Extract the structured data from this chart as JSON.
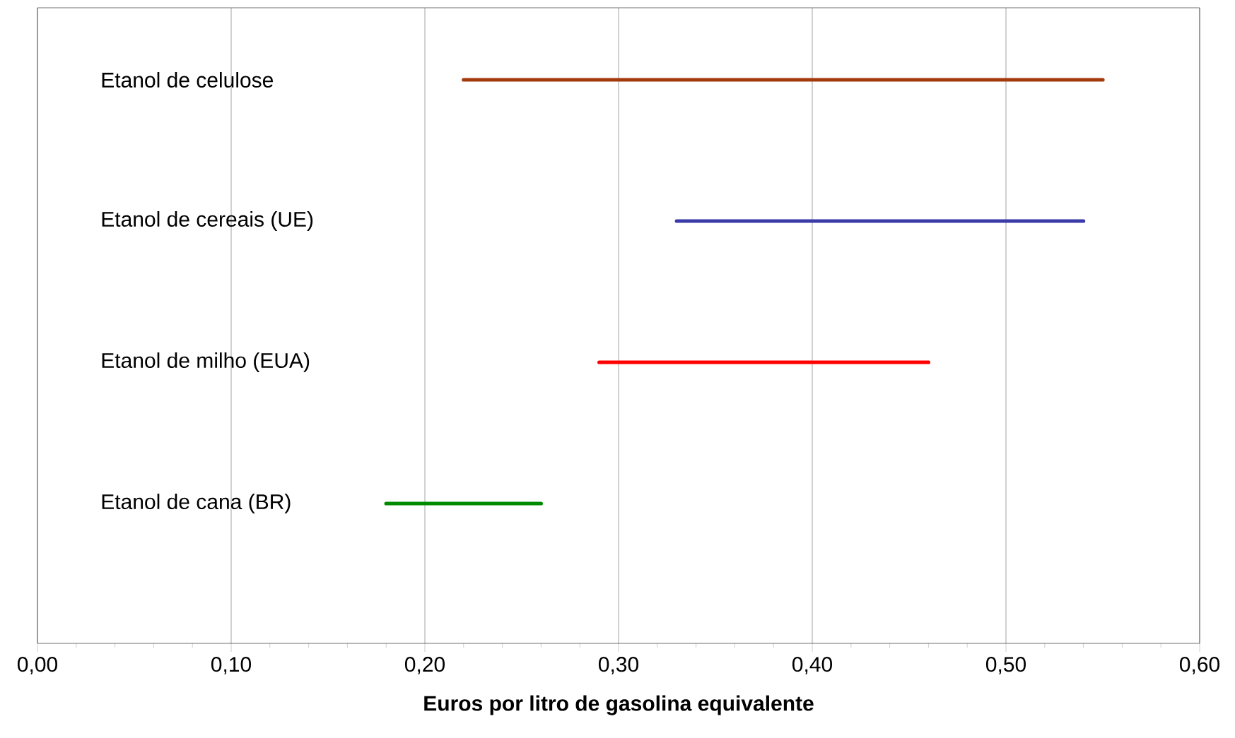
{
  "chart_data": {
    "type": "bar",
    "orientation": "horizontal",
    "xlabel": "Euros por litro de gasolina equivalente",
    "categories": [
      "Etanol de celulose",
      "Etanol de cereais (UE)",
      "Etanol de milho (EUA)",
      "Etanol de cana (BR)"
    ],
    "base": [
      0.22,
      0.33,
      0.29,
      0.18
    ],
    "values": [
      0.33,
      0.21,
      0.17,
      0.08
    ],
    "colors": [
      "#a33a0c",
      "#3a3aa8",
      "#ff0000",
      "#008a00"
    ],
    "xlim": [
      0,
      0.6
    ],
    "xticks": [
      {
        "value": 0,
        "label": "0,00"
      },
      {
        "value": 0.1,
        "label": "0,10"
      },
      {
        "value": 0.2,
        "label": "0,20"
      },
      {
        "value": 0.3,
        "label": "0,30"
      },
      {
        "value": 0.4,
        "label": "0,40"
      },
      {
        "value": 0.5,
        "label": "0,50"
      },
      {
        "value": 0.6,
        "label": "0,60"
      }
    ],
    "grid": "x"
  }
}
